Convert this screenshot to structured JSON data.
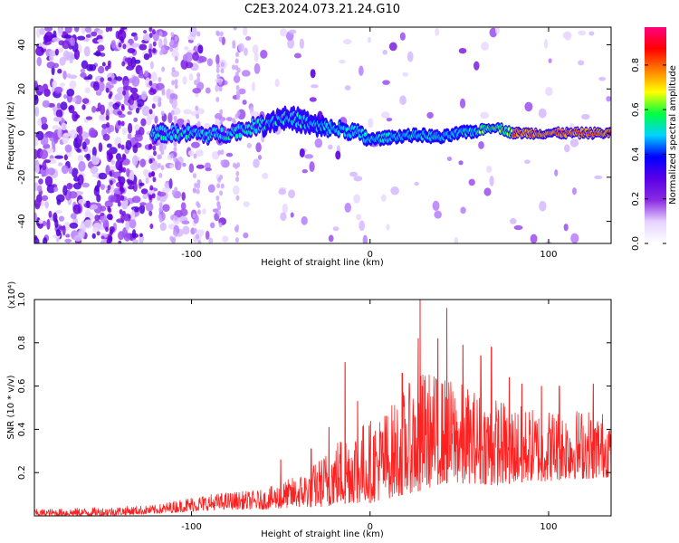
{
  "title": "C2E3.2024.073.21.24.G10",
  "chart_data": [
    {
      "type": "heatmap",
      "xlabel": "Height of straight line (km)",
      "ylabel": "Frequency (Hz)",
      "xlim": [
        -188,
        135
      ],
      "ylim": [
        -50,
        48
      ],
      "x_ticks": [
        -100,
        0,
        100
      ],
      "y_ticks": [
        -40,
        -20,
        0,
        20,
        40
      ],
      "colorbar": {
        "label": "Normalized spectral amplitude",
        "range": [
          0,
          0.97
        ],
        "ticks": [
          0.0,
          0.2,
          0.4,
          0.6,
          0.8
        ],
        "colormap": [
          "#ffffff",
          "#e6d3ff",
          "#8a2be2",
          "#5a00e6",
          "#0000ff",
          "#00d2ff",
          "#00ff40",
          "#ffff00",
          "#ff8000",
          "#ff0000",
          "#ff0080"
        ]
      },
      "ridge_center_hz": [
        {
          "x": -120,
          "y": 0
        },
        {
          "x": -100,
          "y": 0
        },
        {
          "x": -90,
          "y": -1
        },
        {
          "x": -80,
          "y": 0
        },
        {
          "x": -70,
          "y": 2
        },
        {
          "x": -60,
          "y": 4
        },
        {
          "x": -50,
          "y": 7
        },
        {
          "x": -40,
          "y": 6
        },
        {
          "x": -30,
          "y": 3
        },
        {
          "x": -20,
          "y": 2
        },
        {
          "x": -10,
          "y": 1
        },
        {
          "x": 0,
          "y": -3
        },
        {
          "x": 10,
          "y": -2
        },
        {
          "x": 20,
          "y": -1
        },
        {
          "x": 30,
          "y": -1
        },
        {
          "x": 40,
          "y": -2
        },
        {
          "x": 50,
          "y": 0
        },
        {
          "x": 60,
          "y": 1
        },
        {
          "x": 70,
          "y": 3
        },
        {
          "x": 80,
          "y": 0
        },
        {
          "x": 100,
          "y": 0
        },
        {
          "x": 120,
          "y": 0
        },
        {
          "x": 135,
          "y": 0
        }
      ]
    },
    {
      "type": "line",
      "xlabel": "Height of straight line (km)",
      "ylabel": "SNR (10 * v/v)",
      "y_multiplier": "(x10⁴)",
      "xlim": [
        -188,
        135
      ],
      "ylim": [
        0,
        1.0
      ],
      "x_ticks": [
        -100,
        0,
        100
      ],
      "y_ticks": [
        0.2,
        0.4,
        0.6,
        0.8,
        1.0
      ],
      "color": "#ff2020",
      "series": [
        {
          "envelope": [
            {
              "x": -188,
              "min": 0.0,
              "max": 0.03
            },
            {
              "x": -150,
              "min": 0.0,
              "max": 0.04
            },
            {
              "x": -120,
              "min": 0.01,
              "max": 0.05
            },
            {
              "x": -100,
              "min": 0.02,
              "max": 0.09
            },
            {
              "x": -80,
              "min": 0.03,
              "max": 0.11
            },
            {
              "x": -60,
              "min": 0.03,
              "max": 0.12
            },
            {
              "x": -40,
              "min": 0.04,
              "max": 0.19
            },
            {
              "x": -30,
              "min": 0.04,
              "max": 0.25
            },
            {
              "x": -20,
              "min": 0.05,
              "max": 0.35
            },
            {
              "x": -10,
              "min": 0.06,
              "max": 0.42
            },
            {
              "x": 0,
              "min": 0.06,
              "max": 0.45
            },
            {
              "x": 10,
              "min": 0.08,
              "max": 0.5
            },
            {
              "x": 20,
              "min": 0.1,
              "max": 0.6
            },
            {
              "x": 30,
              "min": 0.12,
              "max": 0.68
            },
            {
              "x": 40,
              "min": 0.15,
              "max": 0.65
            },
            {
              "x": 50,
              "min": 0.15,
              "max": 0.62
            },
            {
              "x": 60,
              "min": 0.15,
              "max": 0.58
            },
            {
              "x": 70,
              "min": 0.14,
              "max": 0.55
            },
            {
              "x": 80,
              "min": 0.15,
              "max": 0.52
            },
            {
              "x": 90,
              "min": 0.16,
              "max": 0.5
            },
            {
              "x": 100,
              "min": 0.16,
              "max": 0.5
            },
            {
              "x": 110,
              "min": 0.17,
              "max": 0.5
            },
            {
              "x": 120,
              "min": 0.17,
              "max": 0.5
            },
            {
              "x": 135,
              "min": 0.18,
              "max": 0.48
            }
          ],
          "peaks": [
            {
              "x": -50,
              "y": 0.26
            },
            {
              "x": -33,
              "y": 0.31
            },
            {
              "x": -23,
              "y": 0.41
            },
            {
              "x": -14,
              "y": 0.71
            },
            {
              "x": -7,
              "y": 0.53
            },
            {
              "x": 18,
              "y": 0.66
            },
            {
              "x": 27,
              "y": 0.82
            },
            {
              "x": 28,
              "y": 1.0
            },
            {
              "x": 38,
              "y": 0.82
            },
            {
              "x": 43,
              "y": 0.96
            },
            {
              "x": 52,
              "y": 0.79
            },
            {
              "x": 62,
              "y": 0.74
            },
            {
              "x": 68,
              "y": 0.78
            },
            {
              "x": 78,
              "y": 0.64
            },
            {
              "x": 85,
              "y": 0.61
            },
            {
              "x": 96,
              "y": 0.6
            },
            {
              "x": 106,
              "y": 0.6
            },
            {
              "x": 125,
              "y": 0.61
            }
          ]
        }
      ]
    }
  ]
}
